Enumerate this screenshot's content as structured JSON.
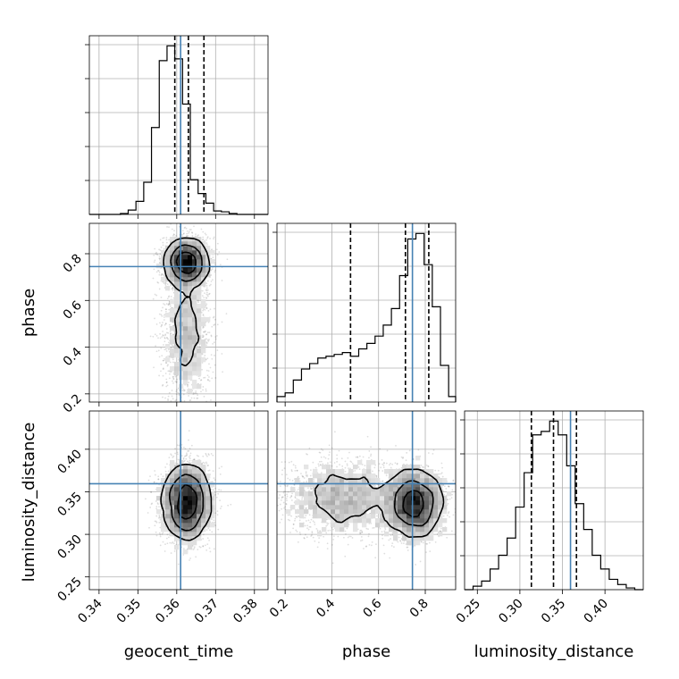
{
  "chart_data": {
    "type": "corner",
    "parameters": [
      "geocent_time",
      "phase",
      "luminosity_distance"
    ],
    "axis_labels": [
      "geocent_time",
      "phase",
      "luminosity_distance"
    ],
    "grid": true,
    "truth_color": "#4682b4",
    "ranges": {
      "geocent_time": [
        0.3375,
        0.3835
      ],
      "phase": [
        0.165,
        0.93
      ],
      "luminosity_distance": [
        0.235,
        0.445
      ]
    },
    "ticks": {
      "geocent_time": [
        "0.34",
        "0.35",
        "0.36",
        "0.37",
        "0.38"
      ],
      "phase": [
        "0.2",
        "0.4",
        "0.6",
        "0.8"
      ],
      "luminosity_distance": [
        "0.25",
        "0.30",
        "0.35",
        "0.40"
      ]
    },
    "truths": {
      "geocent_time": 0.361,
      "phase": 0.745,
      "luminosity_distance": 0.3595
    },
    "quantiles": {
      "geocent_time": [
        0.3595,
        0.363,
        0.367
      ],
      "phase": [
        0.48,
        0.715,
        0.815
      ],
      "luminosity_distance": [
        0.3135,
        0.3395,
        0.3665
      ]
    },
    "histograms": {
      "geocent_time": {
        "edges": [
          0.3375,
          0.3395,
          0.3415,
          0.3435,
          0.3455,
          0.3475,
          0.3495,
          0.3515,
          0.3535,
          0.3555,
          0.3575,
          0.3595,
          0.3615,
          0.3635,
          0.3655,
          0.3675,
          0.3695,
          0.3715,
          0.3735,
          0.3755,
          0.3775,
          0.3795,
          0.3815,
          0.3835
        ],
        "counts": [
          0,
          0,
          0,
          0,
          1,
          5,
          15,
          37,
          100,
          177,
          194,
          179,
          127,
          40,
          24,
          13,
          4,
          3,
          1,
          0,
          0,
          0,
          0
        ]
      },
      "phase": {
        "edges": [
          0.165,
          0.2,
          0.235,
          0.27,
          0.305,
          0.34,
          0.375,
          0.41,
          0.445,
          0.48,
          0.515,
          0.55,
          0.585,
          0.62,
          0.655,
          0.69,
          0.725,
          0.76,
          0.795,
          0.83,
          0.865,
          0.9,
          0.93
        ],
        "counts": [
          3,
          5,
          12,
          18,
          21,
          24,
          25,
          26,
          27,
          25,
          29,
          32,
          36,
          42,
          51,
          69,
          89,
          92,
          75,
          52,
          20,
          3
        ]
      },
      "luminosity_distance": {
        "edges": [
          0.235,
          0.245,
          0.255,
          0.265,
          0.275,
          0.285,
          0.295,
          0.305,
          0.315,
          0.325,
          0.335,
          0.345,
          0.355,
          0.365,
          0.375,
          0.385,
          0.395,
          0.405,
          0.415,
          0.425,
          0.435,
          0.445
        ],
        "counts": [
          0,
          2,
          5,
          12,
          20,
          30,
          48,
          68,
          90,
          92,
          98,
          90,
          72,
          50,
          35,
          20,
          12,
          6,
          3,
          1,
          0
        ]
      }
    },
    "pair_summaries": [
      {
        "x": "geocent_time",
        "y": "phase",
        "peak": [
          0.3625,
          0.76
        ]
      },
      {
        "x": "geocent_time",
        "y": "luminosity_distance",
        "peak": [
          0.3625,
          0.338
        ]
      },
      {
        "x": "phase",
        "y": "luminosity_distance",
        "peak": [
          0.75,
          0.335
        ]
      }
    ]
  }
}
